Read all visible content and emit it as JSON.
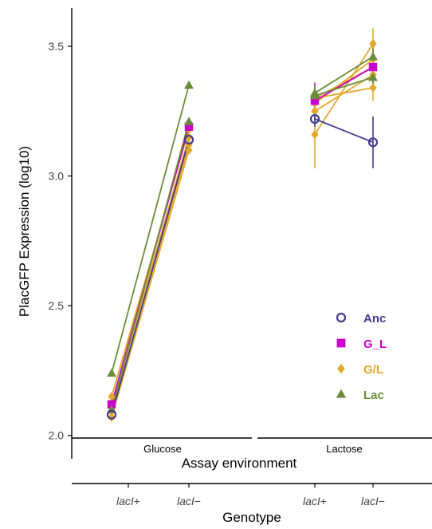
{
  "chart_data": {
    "type": "line",
    "ylabel": "PlacGFP Expression (log10)",
    "facet_axis_label": "Assay environment",
    "xlabel": "Genotype",
    "facets": [
      "Glucose",
      "Lactose"
    ],
    "categories": [
      "lacI+",
      "lacI−"
    ],
    "category_prefix": "lacI",
    "category_suffix": [
      "+",
      "−"
    ],
    "yticks": [
      "2.0",
      "2.5",
      "3.0",
      "3.5"
    ],
    "ylim": [
      1.99,
      3.66
    ],
    "legend_position": "bottom-right inside",
    "series": [
      {
        "name": "Anc",
        "color": "#3f3b8c",
        "marker": "open-circle",
        "lines": [
          {
            "facet": "Glucose",
            "values": [
              2.08,
              3.14
            ]
          },
          {
            "facet": "Lactose",
            "values": [
              3.22,
              3.13
            ],
            "errors": [
              0.03,
              0.1
            ]
          }
        ]
      },
      {
        "name": "G_L",
        "color": "#cc00cc",
        "marker": "square",
        "lines": [
          {
            "facet": "Glucose",
            "values": [
              2.12,
              3.19
            ]
          },
          {
            "facet": "Lactose",
            "values": [
              3.29,
              3.42
            ],
            "errors": [
              0.07,
              0.05
            ]
          }
        ]
      },
      {
        "name": "G/L",
        "color": "#e3a829",
        "marker": "diamond",
        "lines": [
          {
            "facet": "Glucose",
            "values": [
              2.07,
              3.1
            ]
          },
          {
            "facet": "Glucose",
            "values": [
              2.09,
              3.12
            ]
          },
          {
            "facet": "Glucose",
            "values": [
              2.11,
              3.15
            ]
          },
          {
            "facet": "Glucose",
            "values": [
              2.15,
              3.18
            ]
          },
          {
            "facet": "Lactose",
            "values": [
              3.16,
              3.51
            ],
            "errors": [
              0.13,
              0.06
            ]
          },
          {
            "facet": "Lactose",
            "values": [
              3.25,
              3.39
            ],
            "errors": [
              0.03,
              0.05
            ]
          },
          {
            "facet": "Lactose",
            "values": [
              3.28,
              3.45
            ],
            "errors": [
              0.03,
              0.05
            ]
          },
          {
            "facet": "Lactose",
            "values": [
              3.3,
              3.34
            ],
            "errors": [
              0.03,
              0.05
            ]
          },
          {
            "facet": "Lactose",
            "values": [
              3.3,
              3.42
            ],
            "errors": [
              0.03,
              0.05
            ]
          }
        ]
      },
      {
        "name": "Lac",
        "color": "#6b8c3a",
        "marker": "triangle",
        "lines": [
          {
            "facet": "Glucose",
            "values": [
              2.24,
              3.35
            ]
          },
          {
            "facet": "Glucose",
            "values": [
              2.1,
              3.21
            ]
          },
          {
            "facet": "Lactose",
            "values": [
              3.32,
              3.46
            ],
            "errors": [
              0.03,
              0.05
            ]
          },
          {
            "facet": "Lactose",
            "values": [
              3.31,
              3.38
            ],
            "errors": [
              0.03,
              0.05
            ]
          }
        ]
      }
    ]
  }
}
